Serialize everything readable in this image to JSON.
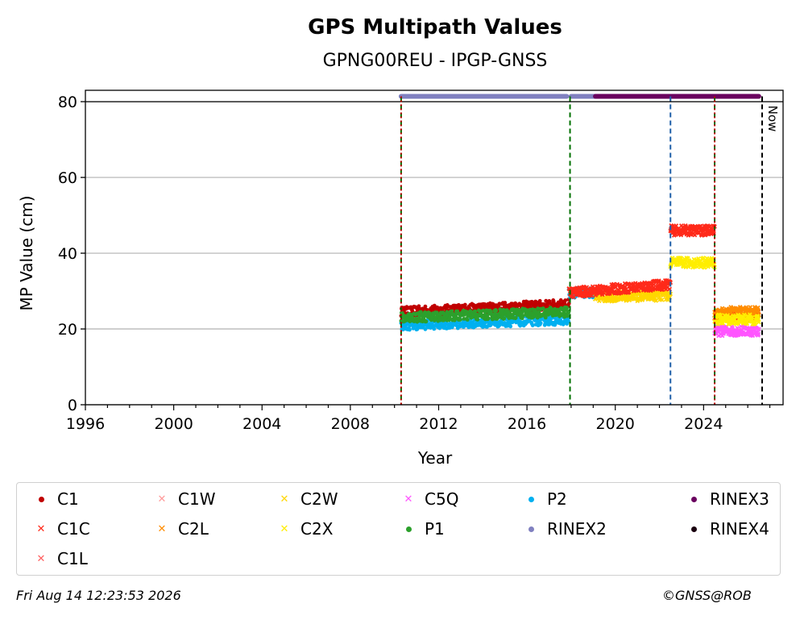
{
  "chart_data": {
    "type": "scatter",
    "title": "GPS Multipath Values",
    "subtitle": "GPNG00REU - IPGP-GNSS",
    "xlabel": "Year",
    "ylabel": "MP Value (cm)",
    "xlim": [
      1996,
      2027.6
    ],
    "ylim": [
      0,
      83
    ],
    "x_ticks": [
      1996,
      2000,
      2004,
      2008,
      2012,
      2016,
      2020,
      2024
    ],
    "y_ticks": [
      0,
      20,
      40,
      60,
      80
    ],
    "grid": "horizontal",
    "series": [
      {
        "name": "C1",
        "color": "#c00000",
        "marker": "dot",
        "segments": [
          {
            "x": [
              2010.3,
              2017.9
            ],
            "y": [
              24.5,
              26.5
            ]
          }
        ]
      },
      {
        "name": "C1W",
        "color": "#ff9a9a",
        "marker": "x",
        "segments": []
      },
      {
        "name": "C2W",
        "color": "#ffd700",
        "marker": "x",
        "segments": [
          {
            "x": [
              2019.0,
              2022.5
            ],
            "y": [
              28.5,
              28.8
            ]
          }
        ]
      },
      {
        "name": "C5Q",
        "color": "#ff55ff",
        "marker": "x",
        "segments": [
          {
            "x": [
              2024.5,
              2026.5
            ],
            "y": [
              19.5,
              19.5
            ]
          }
        ]
      },
      {
        "name": "P2",
        "color": "#00b0f0",
        "marker": "dot",
        "segments": [
          {
            "x": [
              2010.3,
              2017.9
            ],
            "y": [
              21.0,
              22.5
            ]
          },
          {
            "x": [
              2017.9,
              2019.0
            ],
            "y": [
              29.5,
              29.5
            ]
          }
        ]
      },
      {
        "name": "RINEX3",
        "color": "#6a005f",
        "marker": "dot",
        "segments": []
      },
      {
        "name": "C1C",
        "color": "#ff2a1a",
        "marker": "x",
        "segments": [
          {
            "x": [
              2017.9,
              2022.5
            ],
            "y": [
              29.5,
              31.8
            ]
          },
          {
            "x": [
              2022.5,
              2024.5
            ],
            "y": [
              46.0,
              46.0
            ]
          },
          {
            "x": [
              2024.5,
              2026.5
            ],
            "y": [
              23.5,
              23.5
            ]
          }
        ]
      },
      {
        "name": "C2L",
        "color": "#ff8c00",
        "marker": "x",
        "segments": [
          {
            "x": [
              2024.5,
              2026.5
            ],
            "y": [
              24.5,
              24.5
            ]
          }
        ]
      },
      {
        "name": "C2X",
        "color": "#ffee00",
        "marker": "x",
        "segments": [
          {
            "x": [
              2022.5,
              2024.5
            ],
            "y": [
              37.5,
              37.5
            ]
          },
          {
            "x": [
              2024.5,
              2026.5
            ],
            "y": [
              22.5,
              22.5
            ]
          }
        ]
      },
      {
        "name": "P1",
        "color": "#2ca02c",
        "marker": "dot",
        "segments": [
          {
            "x": [
              2010.3,
              2017.9
            ],
            "y": [
              23.0,
              24.5
            ]
          }
        ]
      },
      {
        "name": "RINEX2",
        "color": "#8080c0",
        "marker": "dot",
        "segments": []
      },
      {
        "name": "RINEX4",
        "color": "#1a0010",
        "marker": "dot",
        "segments": []
      },
      {
        "name": "C1L",
        "color": "#ff6060",
        "marker": "x",
        "segments": []
      }
    ],
    "rinex_bar": [
      {
        "name": "RINEX2",
        "color": "#8080c0",
        "x": [
          2010.3,
          2017.8
        ]
      },
      {
        "name": "RINEX2",
        "color": "#8080c0",
        "x": [
          2018.0,
          2019.1
        ]
      },
      {
        "name": "RINEX3",
        "color": "#6a005f",
        "x": [
          2019.1,
          2026.5
        ]
      }
    ],
    "vlines": [
      {
        "x": 2010.3,
        "color": "#007000",
        "style": "dashed"
      },
      {
        "x": 2010.3,
        "color": "#c00000",
        "style": "dotted"
      },
      {
        "x": 2017.95,
        "color": "#007000",
        "style": "dashed"
      },
      {
        "x": 2022.5,
        "color": "#1f5fa8",
        "style": "dashed"
      },
      {
        "x": 2024.5,
        "color": "#007000",
        "style": "dashed"
      },
      {
        "x": 2024.5,
        "color": "#c00000",
        "style": "dotted"
      },
      {
        "x": 2026.65,
        "color": "#000000",
        "style": "dashed"
      }
    ],
    "now_label": "Now",
    "legend_placement": "bottom"
  },
  "legend_items": [
    {
      "name": "C1",
      "color": "#c00000",
      "marker": "dot"
    },
    {
      "name": "C1W",
      "color": "#ff9a9a",
      "marker": "x"
    },
    {
      "name": "C2W",
      "color": "#ffd700",
      "marker": "x"
    },
    {
      "name": "C5Q",
      "color": "#ff55ff",
      "marker": "x"
    },
    {
      "name": "P2",
      "color": "#00b0f0",
      "marker": "dot"
    },
    {
      "name": "RINEX3",
      "color": "#6a005f",
      "marker": "dot"
    },
    {
      "name": "C1C",
      "color": "#ff2a1a",
      "marker": "x"
    },
    {
      "name": "C2L",
      "color": "#ff8c00",
      "marker": "x"
    },
    {
      "name": "C2X",
      "color": "#ffee00",
      "marker": "x"
    },
    {
      "name": "P1",
      "color": "#2ca02c",
      "marker": "dot"
    },
    {
      "name": "RINEX2",
      "color": "#8080c0",
      "marker": "dot"
    },
    {
      "name": "RINEX4",
      "color": "#1a0010",
      "marker": "dot"
    },
    {
      "name": "C1L",
      "color": "#ff6060",
      "marker": "x"
    }
  ],
  "footer": {
    "timestamp": "Fri Aug 14 12:23:53 2026",
    "credit": "©GNSS@ROB"
  }
}
